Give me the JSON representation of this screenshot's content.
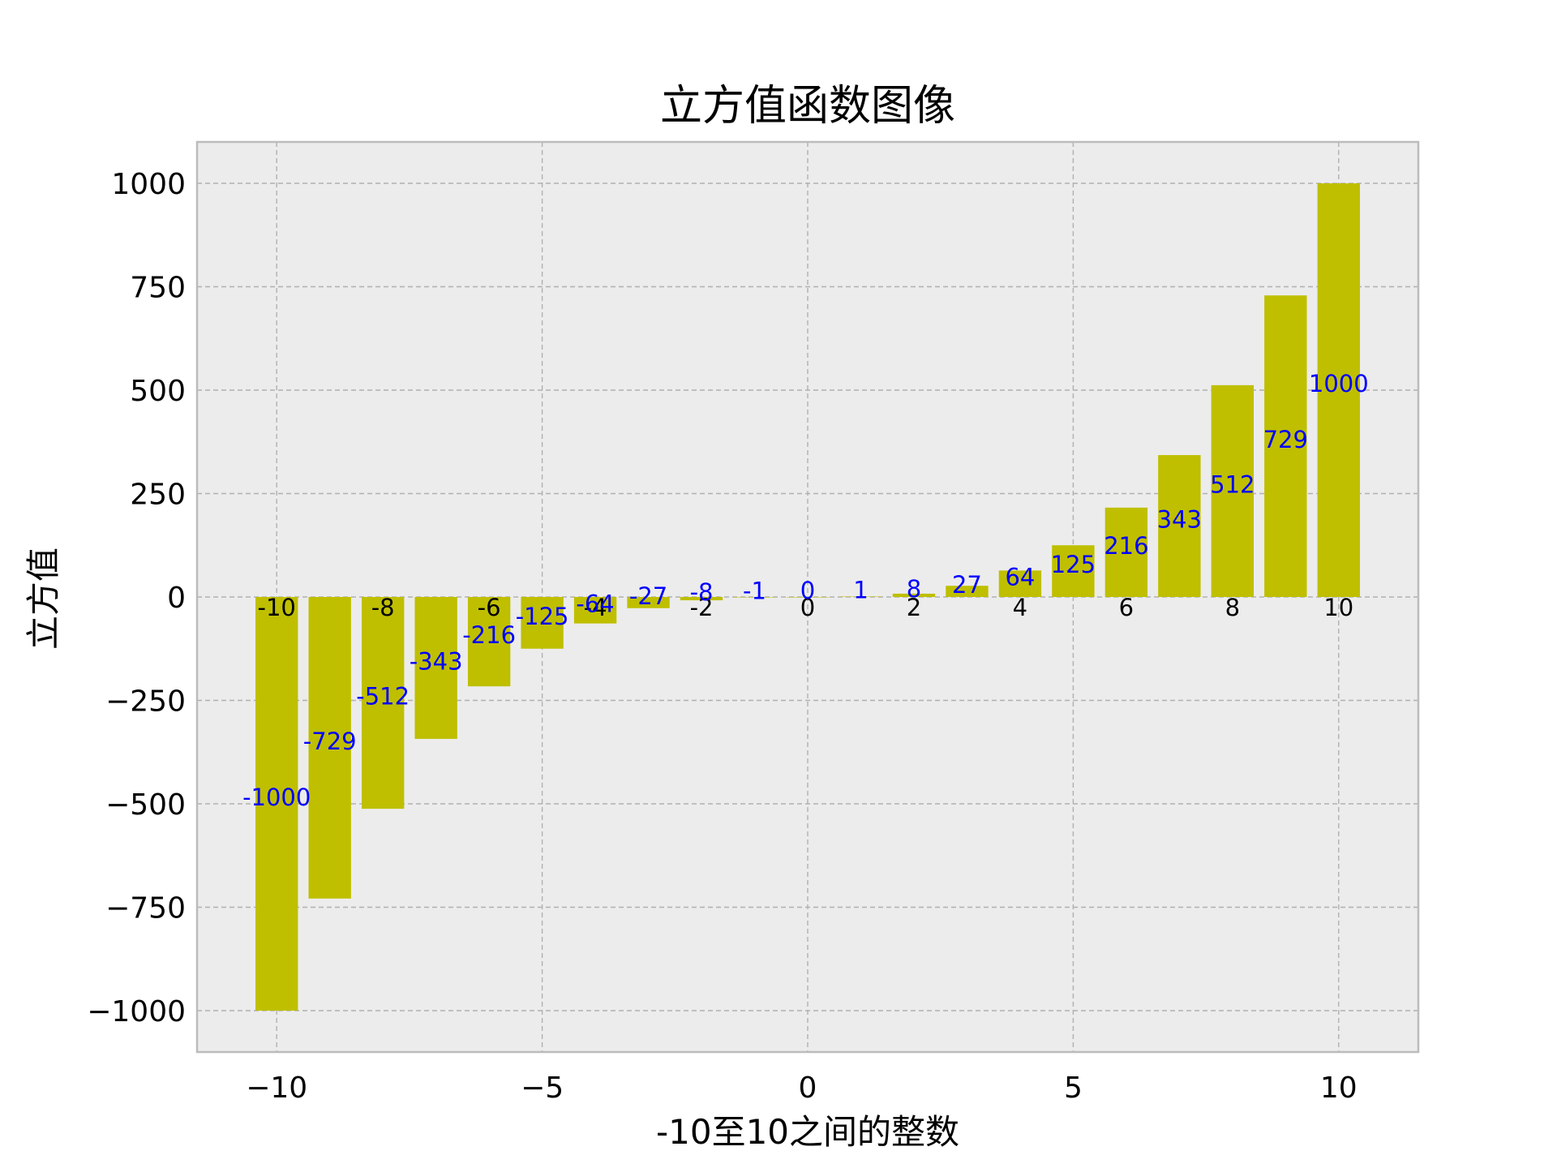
{
  "chart_data": {
    "type": "bar",
    "title": "立方值函数图像",
    "xlabel": "-10至10之间的整数",
    "ylabel": "立方值",
    "x": [
      -10,
      -9,
      -8,
      -7,
      -6,
      -5,
      -4,
      -3,
      -2,
      -1,
      0,
      1,
      2,
      3,
      4,
      5,
      6,
      7,
      8,
      9,
      10
    ],
    "values": [
      -1000,
      -729,
      -512,
      -343,
      -216,
      -125,
      -64,
      -27,
      -8,
      -1,
      0,
      1,
      8,
      27,
      64,
      125,
      216,
      343,
      512,
      729,
      1000
    ],
    "x_bar_labels": [
      "-10",
      "-8",
      "-6",
      "-4",
      "-2",
      "0",
      "2",
      "4",
      "6",
      "8",
      "10"
    ],
    "xlim": [
      -11.5,
      11.5
    ],
    "ylim": [
      -1100,
      1100
    ],
    "x_ticks": [
      -10,
      -5,
      0,
      5,
      10
    ],
    "x_tick_labels": [
      "−10",
      "−5",
      "0",
      "5",
      "10"
    ],
    "y_ticks": [
      1000,
      750,
      500,
      250,
      0,
      -250,
      -500,
      -750,
      -1000
    ],
    "y_tick_labels": [
      "1000",
      "750",
      "500",
      "250",
      "0",
      "−250",
      "−500",
      "−750",
      "−1000"
    ],
    "grid": true,
    "colors": {
      "bar": "#bfbf00",
      "value_label": "#0000ff",
      "x_label": "#000000",
      "plot_bg": "#ececec"
    }
  }
}
